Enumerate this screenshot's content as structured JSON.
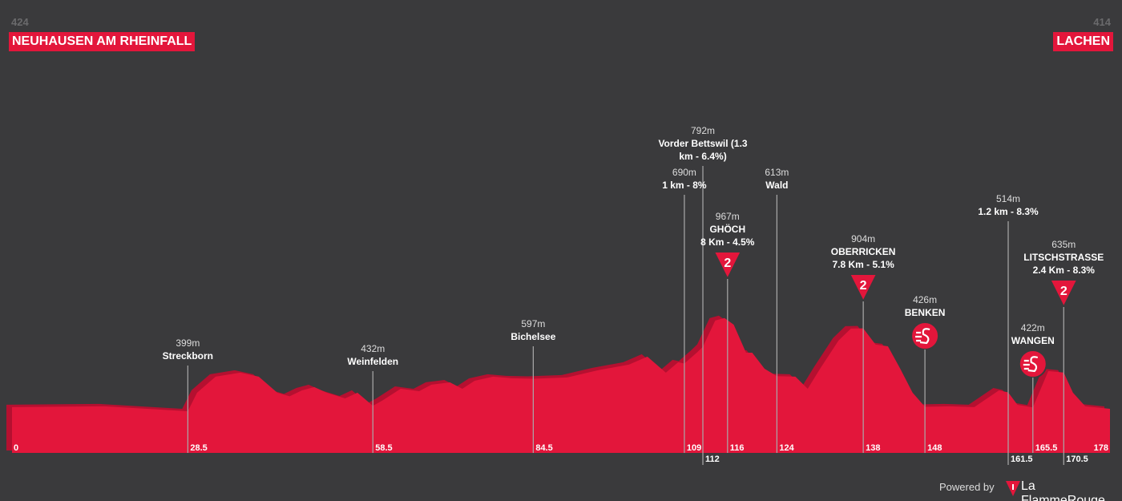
{
  "chart_data": {
    "type": "area",
    "start": {
      "elevation": 424,
      "name": "NEUHAUSEN AM RHEINFALL"
    },
    "finish": {
      "elevation": 414,
      "name": "LACHEN"
    },
    "color": "#e3163b",
    "xlim": [
      0,
      178
    ],
    "ylim": [
      145,
      1000
    ],
    "x": [
      0,
      15,
      28.5,
      30,
      33,
      37,
      40,
      43,
      45,
      47,
      49,
      51,
      54,
      56,
      58.5,
      60,
      63,
      66,
      68,
      71,
      73,
      75,
      78,
      81,
      84.5,
      90,
      95,
      100,
      103,
      106,
      108,
      109,
      111,
      112,
      114,
      115.5,
      117,
      119,
      120,
      122,
      124,
      127,
      129,
      131,
      134,
      136,
      138,
      140,
      142,
      144,
      146,
      148,
      152,
      156,
      160,
      161.5,
      163,
      165.5,
      168,
      170.5,
      172,
      174,
      178
    ],
    "values": [
      424,
      429,
      399,
      512,
      610,
      634,
      610,
      512,
      490,
      526,
      546,
      512,
      477,
      512,
      432,
      463,
      536,
      521,
      561,
      575,
      536,
      585,
      610,
      600,
      597,
      605,
      649,
      683,
      732,
      634,
      698,
      690,
      756,
      792,
      952,
      967,
      927,
      756,
      756,
      658,
      613,
      610,
      536,
      658,
      830,
      903,
      904,
      805,
      795,
      658,
      512,
      426,
      429,
      424,
      526,
      514,
      438,
      422,
      644,
      635,
      512,
      429,
      414
    ],
    "waypoints": [
      {
        "km": 28.5,
        "elevation": 399,
        "elevation_label": "399m",
        "name": "Streckborn"
      },
      {
        "km": 58.5,
        "elevation": 432,
        "elevation_label": "432m",
        "name": "Weinfelden"
      },
      {
        "km": 84.5,
        "elevation": 597,
        "elevation_label": "597m",
        "name": "Bichelsee"
      },
      {
        "km": 109,
        "elevation": 690,
        "elevation_label": "690m",
        "name": "1 km - 8%"
      },
      {
        "km": 112,
        "elevation": 792,
        "elevation_label": "792m",
        "name": "Vorder Bettswil (1.3 km - 6.4%)"
      },
      {
        "km": 116,
        "elevation": 967,
        "elevation_label": "967m",
        "name": "GHÖCH",
        "detail": "8 Km - 4.5%",
        "category": "2"
      },
      {
        "km": 124,
        "elevation": 613,
        "elevation_label": "613m",
        "name": "Wald"
      },
      {
        "km": 138,
        "elevation": 904,
        "elevation_label": "904m",
        "name": "OBERRICKEN",
        "detail": "7.8 Km - 5.1%",
        "category": "2"
      },
      {
        "km": 148,
        "elevation": 426,
        "elevation_label": "426m",
        "name": "BENKEN",
        "marker": "sprint"
      },
      {
        "km": 161.5,
        "elevation": 514,
        "elevation_label": "514m",
        "name": "1.2 km - 8.3%"
      },
      {
        "km": 165.5,
        "elevation": 422,
        "elevation_label": "422m",
        "name": "WANGEN",
        "marker": "sprint"
      },
      {
        "km": 170.5,
        "elevation": 635,
        "elevation_label": "635m",
        "name": "LITSCHSTRASSE",
        "detail": "2.4 Km - 8.3%",
        "category": "2"
      }
    ],
    "footer": {
      "powered": "Powered by",
      "brand": "La FlammeRouge"
    }
  }
}
